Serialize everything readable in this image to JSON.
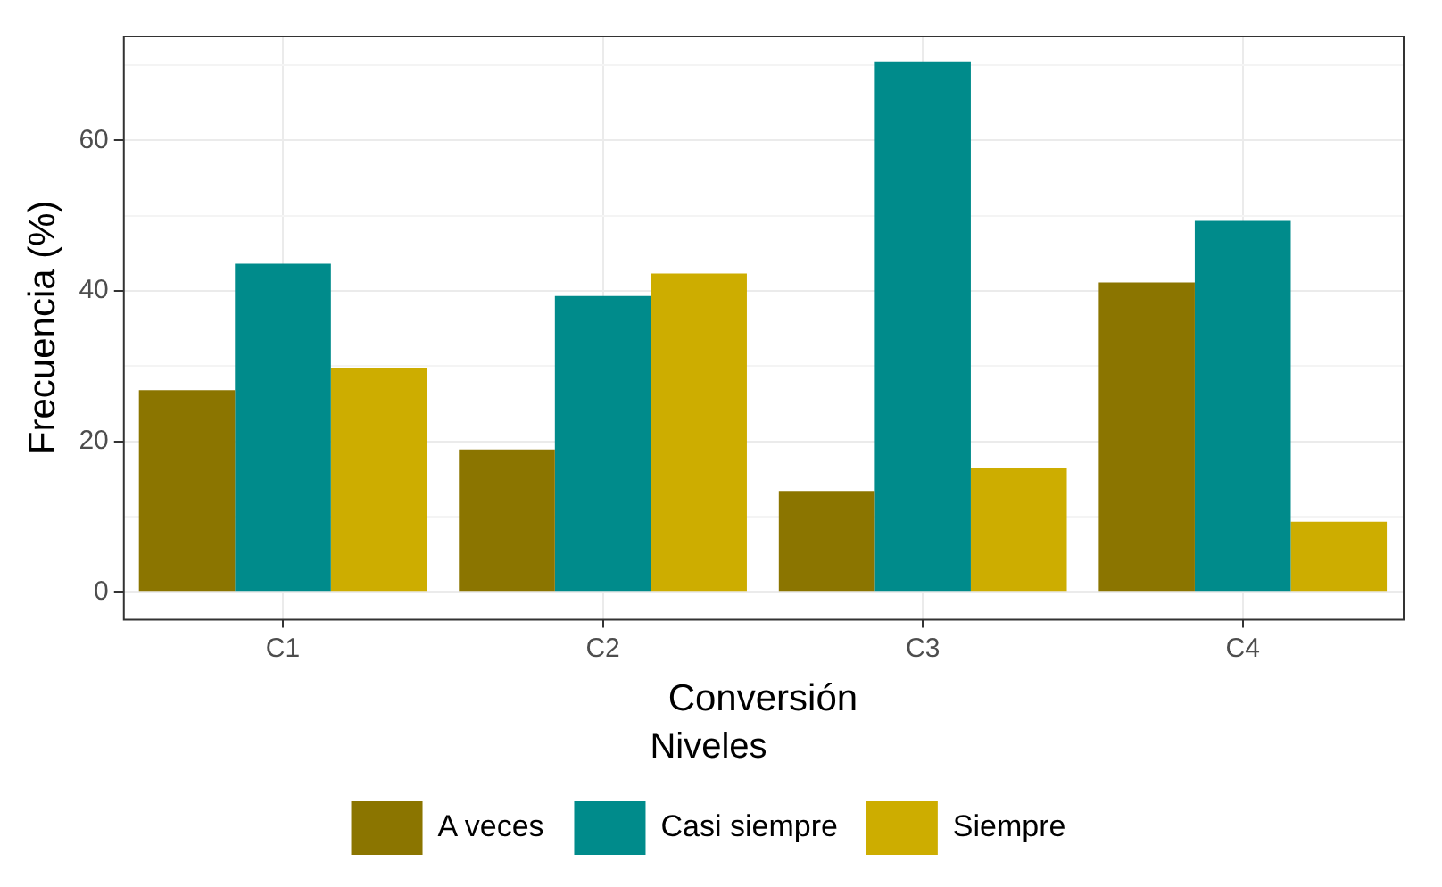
{
  "chart_data": {
    "type": "bar",
    "xlabel": "Conversión",
    "ylabel": "Frecuencia (%)",
    "legend_title": "Niveles",
    "categories": [
      "C1",
      "C2",
      "C3",
      "C4"
    ],
    "series": [
      {
        "name": "A veces",
        "color": "#8b7500",
        "values": [
          26.8,
          18.9,
          13.4,
          41.1
        ]
      },
      {
        "name": "Casi siempre",
        "color": "#008b8b",
        "values": [
          43.6,
          39.3,
          70.5,
          49.3
        ]
      },
      {
        "name": "Siempre",
        "color": "#cdad00",
        "values": [
          29.8,
          42.3,
          16.4,
          9.3
        ]
      }
    ],
    "ylim": [
      -3.6,
      73.9
    ],
    "yticks": [
      0,
      {
        "value": 10,
        "label": null
      },
      20,
      {
        "value": 30,
        "label": null
      },
      40,
      {
        "value": 50,
        "label": null
      },
      60,
      {
        "value": 70,
        "label": null
      }
    ],
    "grid": true,
    "legend": "bottom"
  }
}
